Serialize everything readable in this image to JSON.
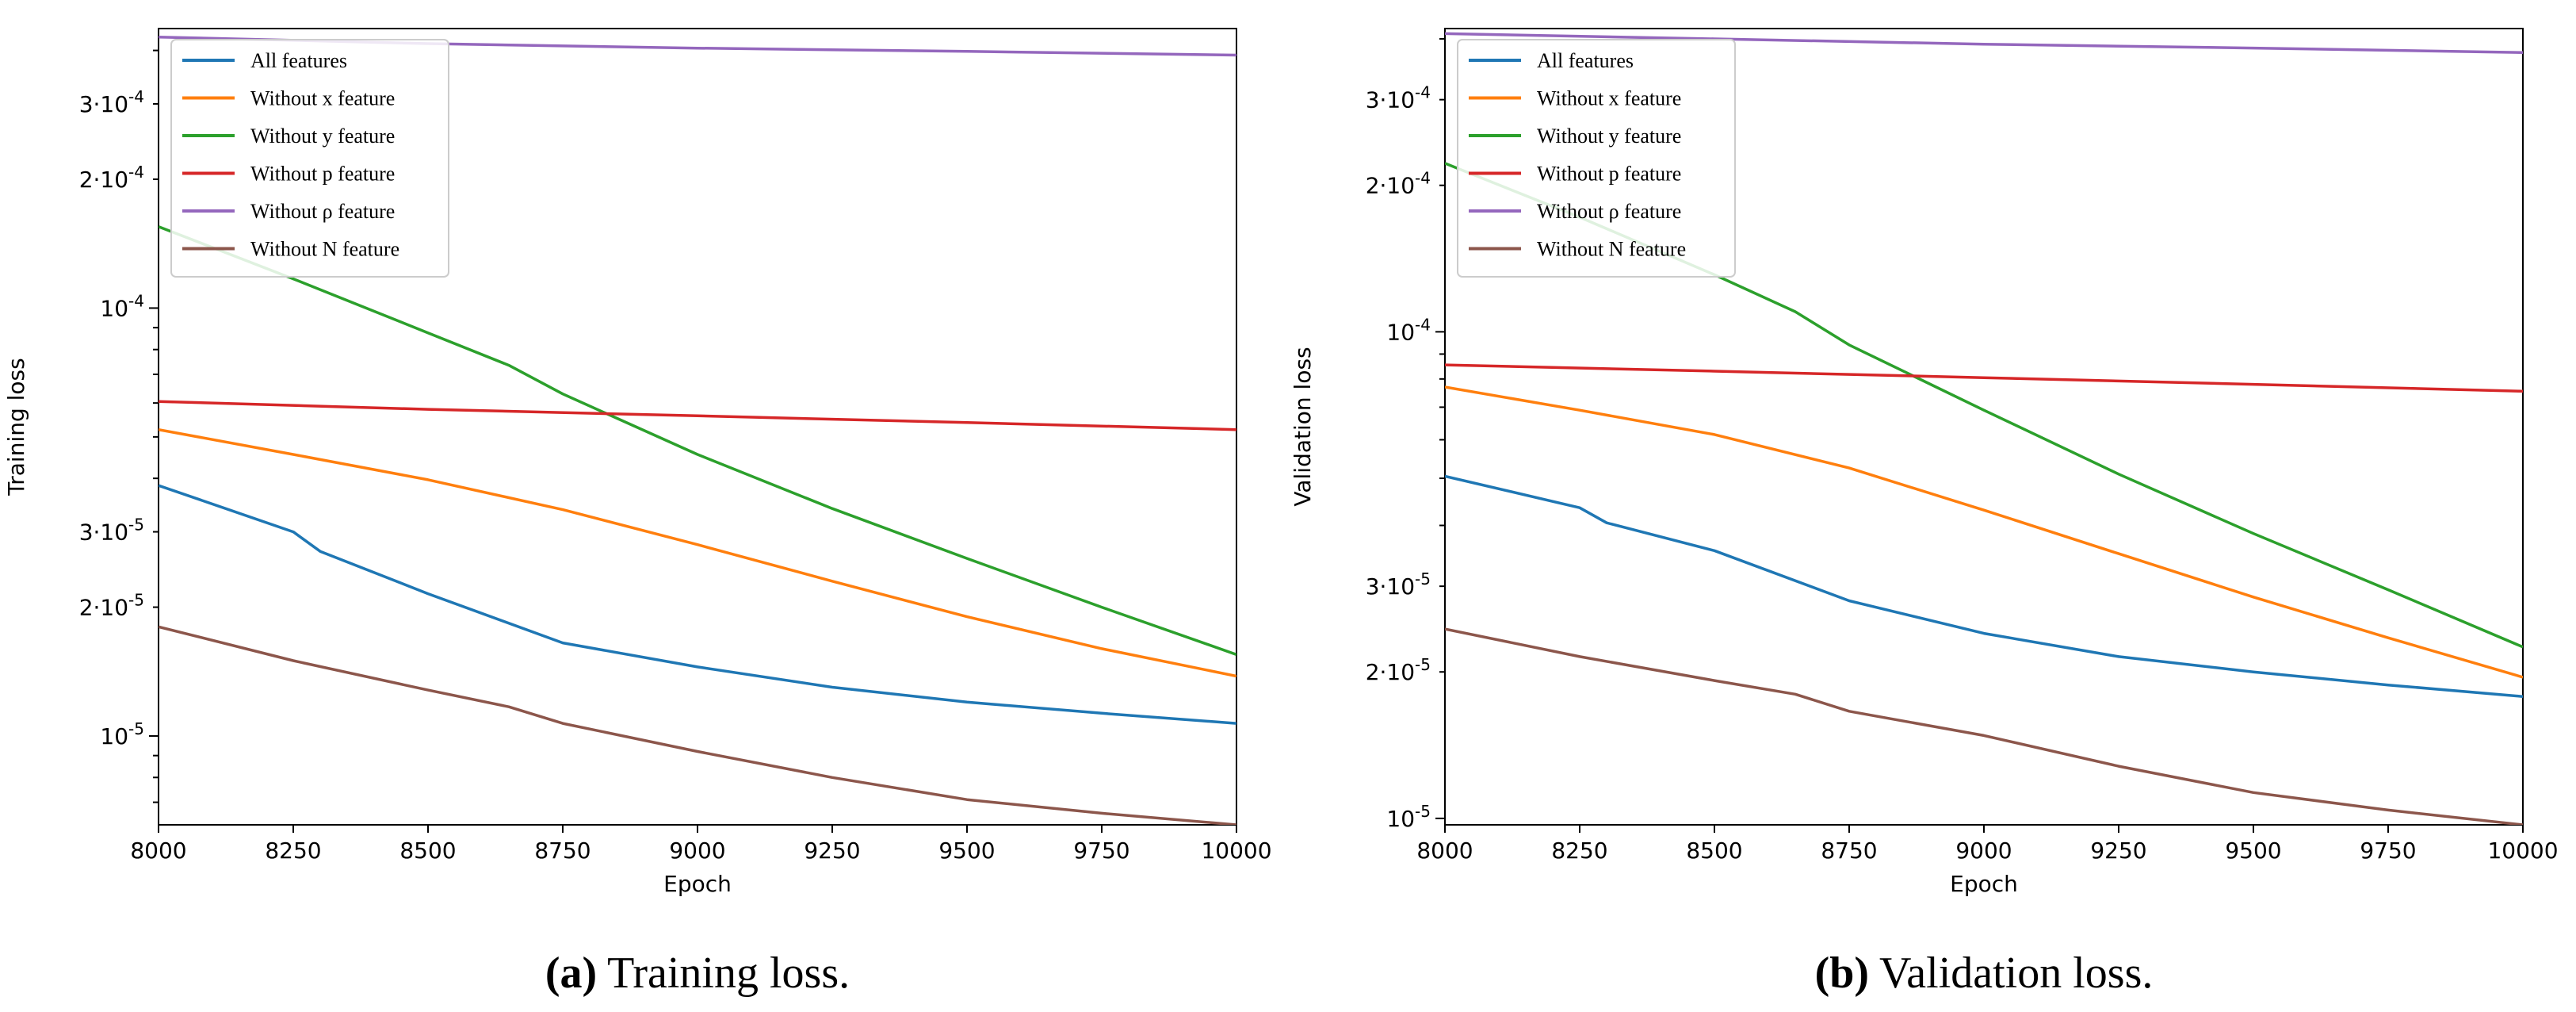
{
  "chart_data": [
    {
      "type": "line",
      "caption_letter": "(a)",
      "caption_text": "Training loss.",
      "xlabel": "Epoch",
      "ylabel": "Training loss",
      "xlim": [
        8000,
        10000
      ],
      "ylim": [
        6.2e-06,
        0.00045
      ],
      "yscale": "log",
      "xticks": [
        "8000",
        "8250",
        "8500",
        "8750",
        "9000",
        "9250",
        "9500",
        "9750",
        "10000"
      ],
      "yticks": [
        {
          "value": 1e-05,
          "label": "10^-5"
        },
        {
          "value": 2e-05,
          "label": "2·10^-5"
        },
        {
          "value": 3e-05,
          "label": "3·10^-5"
        },
        {
          "value": 0.0001,
          "label": "10^-4"
        },
        {
          "value": 0.0002,
          "label": "2·10^-4"
        },
        {
          "value": 0.0003,
          "label": "3·10^-4"
        }
      ],
      "legend": "top-left",
      "series": [
        {
          "name": "All features",
          "color": "#1f77b4",
          "x": [
            8000,
            8250,
            8300,
            8500,
            8750,
            9000,
            9250,
            9500,
            9750,
            10000
          ],
          "y": [
            3.85e-05,
            3e-05,
            2.7e-05,
            2.15e-05,
            1.65e-05,
            1.45e-05,
            1.3e-05,
            1.2e-05,
            1.13e-05,
            1.07e-05
          ]
        },
        {
          "name": "Without x feature",
          "color": "#ff7f0e",
          "x": [
            8000,
            8250,
            8500,
            8750,
            9000,
            9250,
            9500,
            9750,
            10000
          ],
          "y": [
            5.2e-05,
            4.55e-05,
            3.97e-05,
            3.38e-05,
            2.8e-05,
            2.3e-05,
            1.9e-05,
            1.6e-05,
            1.38e-05
          ]
        },
        {
          "name": "Without y feature",
          "color": "#2ca02c",
          "x": [
            8000,
            8250,
            8500,
            8650,
            8750,
            9000,
            9250,
            9500,
            9750,
            10000
          ],
          "y": [
            0.000155,
            0.000117,
            8.75e-05,
            7.35e-05,
            6.3e-05,
            4.55e-05,
            3.4e-05,
            2.6e-05,
            2e-05,
            1.55e-05
          ]
        },
        {
          "name": "Without p feature",
          "color": "#d62728",
          "x": [
            8000,
            8500,
            9000,
            9500,
            10000
          ],
          "y": [
            6.05e-05,
            5.8e-05,
            5.6e-05,
            5.4e-05,
            5.2e-05
          ]
        },
        {
          "name": "Without ρ feature",
          "color": "#9467bd",
          "x": [
            8000,
            8500,
            9000,
            9500,
            10000
          ],
          "y": [
            0.00043,
            0.000415,
            0.000405,
            0.000398,
            0.00039
          ]
        },
        {
          "name": "Without N feature",
          "color": "#8c564b",
          "x": [
            8000,
            8250,
            8500,
            8650,
            8750,
            9000,
            9250,
            9500,
            9750,
            10000
          ],
          "y": [
            1.8e-05,
            1.5e-05,
            1.28e-05,
            1.17e-05,
            1.07e-05,
            9.2e-06,
            8e-06,
            7.1e-06,
            6.6e-06,
            6.2e-06
          ]
        }
      ]
    },
    {
      "type": "line",
      "caption_letter": "(b)",
      "caption_text": "Validation loss.",
      "xlabel": "Epoch",
      "ylabel": "Validation loss",
      "xlim": [
        8000,
        10000
      ],
      "ylim": [
        9.7e-06,
        0.00042
      ],
      "yscale": "log",
      "xticks": [
        "8000",
        "8250",
        "8500",
        "8750",
        "9000",
        "9250",
        "9500",
        "9750",
        "10000"
      ],
      "yticks": [
        {
          "value": 1e-05,
          "label": "10^-5"
        },
        {
          "value": 2e-05,
          "label": "2·10^-5"
        },
        {
          "value": 3e-05,
          "label": "3·10^-5"
        },
        {
          "value": 0.0001,
          "label": "10^-4"
        },
        {
          "value": 0.0002,
          "label": "2·10^-4"
        },
        {
          "value": 0.0003,
          "label": "3·10^-4"
        }
      ],
      "legend": "top-left",
      "series": [
        {
          "name": "All features",
          "color": "#1f77b4",
          "x": [
            8000,
            8250,
            8300,
            8500,
            8750,
            9000,
            9250,
            9500,
            9750,
            10000
          ],
          "y": [
            5.05e-05,
            4.35e-05,
            4.05e-05,
            3.55e-05,
            2.8e-05,
            2.4e-05,
            2.15e-05,
            2e-05,
            1.88e-05,
            1.78e-05
          ]
        },
        {
          "name": "Without x feature",
          "color": "#ff7f0e",
          "x": [
            8000,
            8250,
            8500,
            8750,
            9000,
            9250,
            9500,
            9750,
            10000
          ],
          "y": [
            7.7e-05,
            6.9e-05,
            6.15e-05,
            5.25e-05,
            4.3e-05,
            3.5e-05,
            2.85e-05,
            2.35e-05,
            1.95e-05
          ]
        },
        {
          "name": "Without y feature",
          "color": "#2ca02c",
          "x": [
            8000,
            8250,
            8500,
            8650,
            8750,
            9000,
            9250,
            9500,
            9750,
            10000
          ],
          "y": [
            0.000222,
            0.000172,
            0.000131,
            0.00011,
            9.4e-05,
            6.9e-05,
            5.1e-05,
            3.85e-05,
            2.95e-05,
            2.25e-05
          ]
        },
        {
          "name": "Without p feature",
          "color": "#d62728",
          "x": [
            8000,
            8500,
            9000,
            9500,
            10000
          ],
          "y": [
            8.55e-05,
            8.3e-05,
            8.05e-05,
            7.8e-05,
            7.55e-05
          ]
        },
        {
          "name": "Without ρ feature",
          "color": "#9467bd",
          "x": [
            8000,
            8500,
            9000,
            9500,
            10000
          ],
          "y": [
            0.00041,
            0.0004,
            0.00039,
            0.000383,
            0.000375
          ]
        },
        {
          "name": "Without N feature",
          "color": "#8c564b",
          "x": [
            8000,
            8250,
            8500,
            8650,
            8750,
            9000,
            9250,
            9500,
            9750,
            10000
          ],
          "y": [
            2.45e-05,
            2.15e-05,
            1.92e-05,
            1.8e-05,
            1.66e-05,
            1.48e-05,
            1.28e-05,
            1.13e-05,
            1.04e-05,
            9.7e-06
          ]
        }
      ]
    }
  ]
}
